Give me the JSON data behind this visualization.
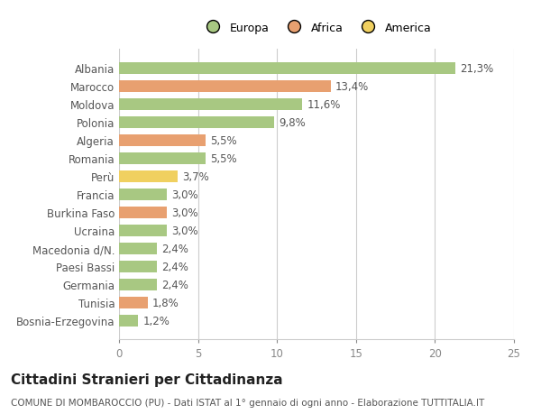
{
  "categories": [
    "Albania",
    "Marocco",
    "Moldova",
    "Polonia",
    "Algeria",
    "Romania",
    "Perù",
    "Francia",
    "Burkina Faso",
    "Ucraina",
    "Macedonia d/N.",
    "Paesi Bassi",
    "Germania",
    "Tunisia",
    "Bosnia-Erzegovina"
  ],
  "values": [
    21.3,
    13.4,
    11.6,
    9.8,
    5.5,
    5.5,
    3.7,
    3.0,
    3.0,
    3.0,
    2.4,
    2.4,
    2.4,
    1.8,
    1.2
  ],
  "labels": [
    "21,3%",
    "13,4%",
    "11,6%",
    "9,8%",
    "5,5%",
    "5,5%",
    "3,7%",
    "3,0%",
    "3,0%",
    "3,0%",
    "2,4%",
    "2,4%",
    "2,4%",
    "1,8%",
    "1,2%"
  ],
  "colors": [
    "#a8c882",
    "#e8a070",
    "#a8c882",
    "#a8c882",
    "#e8a070",
    "#a8c882",
    "#f0d060",
    "#a8c882",
    "#e8a070",
    "#a8c882",
    "#a8c882",
    "#a8c882",
    "#a8c882",
    "#e8a070",
    "#a8c882"
  ],
  "legend_labels": [
    "Europa",
    "Africa",
    "America"
  ],
  "legend_colors": [
    "#a8c882",
    "#e8a070",
    "#f0d060"
  ],
  "xlim": [
    0,
    25
  ],
  "xticks": [
    0,
    5,
    10,
    15,
    20,
    25
  ],
  "title": "Cittadini Stranieri per Cittadinanza",
  "subtitle": "COMUNE DI MOMBAROCCIO (PU) - Dati ISTAT al 1° gennaio di ogni anno - Elaborazione TUTTITALIA.IT",
  "bg_color": "#ffffff",
  "grid_color": "#cccccc",
  "bar_height": 0.65,
  "label_fontsize": 8.5,
  "tick_fontsize": 8.5,
  "title_fontsize": 11,
  "subtitle_fontsize": 7.5
}
